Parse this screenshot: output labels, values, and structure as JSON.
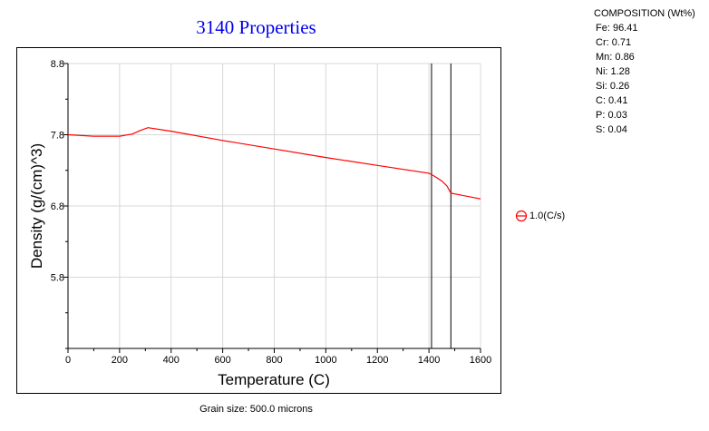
{
  "chart_data": {
    "type": "line",
    "title": "3140 Properties",
    "xlabel": "Temperature (C)",
    "ylabel": "Density (g/(cm)^3)",
    "xlim": [
      0,
      1600
    ],
    "ylim": [
      4.8,
      8.8
    ],
    "x_ticks": [
      0,
      200,
      400,
      600,
      800,
      1000,
      1200,
      1400,
      1600
    ],
    "x_tick_labels": [
      "0",
      "200",
      "400",
      "600",
      "800",
      "1000",
      "1200",
      "1400",
      "1600"
    ],
    "y_ticks": [
      5.8,
      6.8,
      7.8,
      8.8
    ],
    "y_tick_labels": [
      "5.8",
      "6.8",
      "7.8",
      "8.8"
    ],
    "grid": true,
    "vertical_lines": [
      1410,
      1485
    ],
    "series": [
      {
        "name": "1.0(C/s)",
        "color": "#ff0000",
        "x": [
          0,
          100,
          200,
          250,
          280,
          310,
          400,
          600,
          800,
          1000,
          1200,
          1400,
          1420,
          1450,
          1470,
          1485,
          1500,
          1600
        ],
        "y": [
          7.8,
          7.78,
          7.78,
          7.81,
          7.86,
          7.9,
          7.85,
          7.72,
          7.6,
          7.48,
          7.37,
          7.26,
          7.22,
          7.15,
          7.08,
          6.98,
          6.97,
          6.9
        ]
      }
    ],
    "footnote": "Grain size: 500.0 microns"
  },
  "composition": {
    "title": "COMPOSITION (Wt%)",
    "items": [
      "Fe: 96.41",
      "Cr: 0.71",
      "Mn: 0.86",
      "Ni: 1.28",
      "Si: 0.26",
      "C: 0.41",
      "P: 0.03",
      "S: 0.04"
    ]
  },
  "legend": {
    "label": "1.0(C/s)",
    "icon": "circle-minus-icon",
    "color": "#ff0000"
  }
}
